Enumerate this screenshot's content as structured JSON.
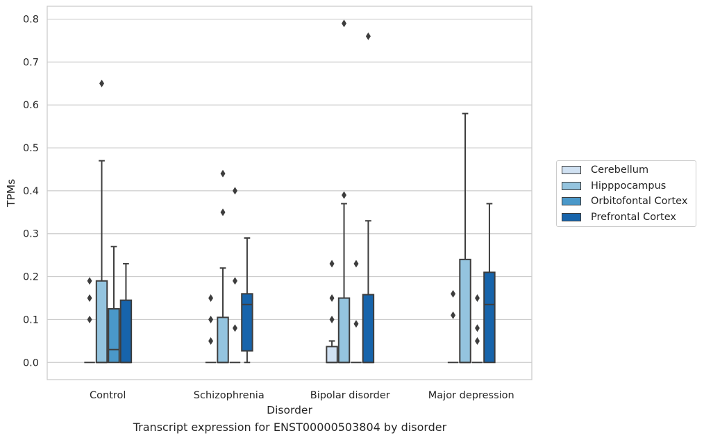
{
  "caption": "Transcript expression for ENST00000503804 by disorder",
  "chart_data": {
    "type": "box",
    "xlabel": "Disorder",
    "ylabel": "TPMs",
    "ylim": [
      -0.04,
      0.83
    ],
    "yticks": [
      "0.0",
      "0.1",
      "0.2",
      "0.3",
      "0.4",
      "0.5",
      "0.6",
      "0.7",
      "0.8"
    ],
    "grid": true,
    "legend_position": "right",
    "categories": [
      "Control",
      "Schizophrenia",
      "Bipolar disorder",
      "Major depression"
    ],
    "series": [
      {
        "name": "Cerebellum",
        "color": "#d0e1f2",
        "boxes": [
          {
            "q1": 0,
            "median": 0,
            "q3": 0,
            "whisker_low": 0,
            "whisker_high": 0,
            "outliers": [
              0.19,
              0.15,
              0.1
            ]
          },
          {
            "q1": 0,
            "median": 0,
            "q3": 0,
            "whisker_low": 0,
            "whisker_high": 0,
            "outliers": [
              0.15,
              0.1,
              0.05
            ]
          },
          {
            "q1": 0,
            "median": 0,
            "q3": 0.037,
            "whisker_low": 0,
            "whisker_high": 0.05,
            "outliers": [
              0.23,
              0.15,
              0.1
            ]
          },
          {
            "q1": 0,
            "median": 0,
            "q3": 0,
            "whisker_low": 0,
            "whisker_high": 0,
            "outliers": [
              0.16,
              0.11
            ]
          }
        ]
      },
      {
        "name": "Hipppocampus",
        "color": "#94c4df",
        "boxes": [
          {
            "q1": 0,
            "median": 0,
            "q3": 0.19,
            "whisker_low": 0,
            "whisker_high": 0.47,
            "outliers": [
              0.65
            ]
          },
          {
            "q1": 0,
            "median": 0,
            "q3": 0.105,
            "whisker_low": 0,
            "whisker_high": 0.22,
            "outliers": [
              0.44,
              0.35
            ]
          },
          {
            "q1": 0,
            "median": 0,
            "q3": 0.15,
            "whisker_low": 0,
            "whisker_high": 0.37,
            "outliers": [
              0.79,
              0.39
            ]
          },
          {
            "q1": 0,
            "median": 0,
            "q3": 0.24,
            "whisker_low": 0,
            "whisker_high": 0.58,
            "outliers": []
          }
        ]
      },
      {
        "name": "Orbitofontal Cortex",
        "color": "#4a98c9",
        "boxes": [
          {
            "q1": 0,
            "median": 0.03,
            "q3": 0.125,
            "whisker_low": 0,
            "whisker_high": 0.27,
            "outliers": []
          },
          {
            "q1": 0,
            "median": 0,
            "q3": 0,
            "whisker_low": 0,
            "whisker_high": 0,
            "outliers": [
              0.4,
              0.19,
              0.08
            ]
          },
          {
            "q1": 0,
            "median": 0,
            "q3": 0,
            "whisker_low": 0,
            "whisker_high": 0,
            "outliers": [
              0.23,
              0.09
            ]
          },
          {
            "q1": 0,
            "median": 0,
            "q3": 0,
            "whisker_low": 0,
            "whisker_high": 0,
            "outliers": [
              0.15,
              0.08,
              0.05
            ]
          }
        ]
      },
      {
        "name": "Prefrontal Cortex",
        "color": "#1764ab",
        "boxes": [
          {
            "q1": 0,
            "median": 0,
            "q3": 0.145,
            "whisker_low": 0,
            "whisker_high": 0.23,
            "outliers": []
          },
          {
            "q1": 0.027,
            "median": 0.135,
            "q3": 0.16,
            "whisker_low": 0,
            "whisker_high": 0.29,
            "outliers": []
          },
          {
            "q1": 0,
            "median": 0,
            "q3": 0.158,
            "whisker_low": 0,
            "whisker_high": 0.33,
            "outliers": [
              0.76
            ]
          },
          {
            "q1": 0,
            "median": 0.135,
            "q3": 0.21,
            "whisker_low": 0,
            "whisker_high": 0.37,
            "outliers": []
          }
        ]
      }
    ]
  }
}
